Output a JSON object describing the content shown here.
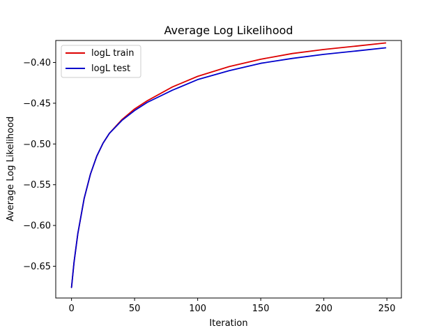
{
  "chart_data": {
    "type": "line",
    "title": "Average Log Likelihood",
    "xlabel": "Iteration",
    "ylabel": "Average Log Likelihood",
    "xlim": [
      -12.5,
      261.5
    ],
    "ylim": [
      -0.689,
      -0.373
    ],
    "xticks": [
      0,
      50,
      100,
      150,
      200,
      250
    ],
    "xtick_labels": [
      "0",
      "50",
      "100",
      "150",
      "200",
      "250"
    ],
    "yticks": [
      -0.65,
      -0.6,
      -0.55,
      -0.5,
      -0.45,
      -0.4
    ],
    "ytick_labels": [
      "−0.65",
      "−0.60",
      "−0.55",
      "−0.50",
      "−0.45",
      "−0.40"
    ],
    "grid": false,
    "legend_position": "top-left",
    "x": [
      0,
      2,
      5,
      10,
      15,
      20,
      25,
      30,
      40,
      50,
      60,
      80,
      100,
      125,
      150,
      175,
      200,
      225,
      249
    ],
    "series": [
      {
        "name": "logL train",
        "color": "#dd0000",
        "values": [
          -0.676,
          -0.645,
          -0.61,
          -0.567,
          -0.537,
          -0.515,
          -0.499,
          -0.487,
          -0.47,
          -0.457,
          -0.447,
          -0.43,
          -0.417,
          -0.405,
          -0.396,
          -0.389,
          -0.384,
          -0.38,
          -0.376
        ]
      },
      {
        "name": "logL test",
        "color": "#0000cc",
        "values": [
          -0.676,
          -0.645,
          -0.61,
          -0.567,
          -0.537,
          -0.515,
          -0.499,
          -0.487,
          -0.471,
          -0.459,
          -0.449,
          -0.434,
          -0.421,
          -0.41,
          -0.401,
          -0.395,
          -0.39,
          -0.386,
          -0.382
        ]
      }
    ]
  }
}
